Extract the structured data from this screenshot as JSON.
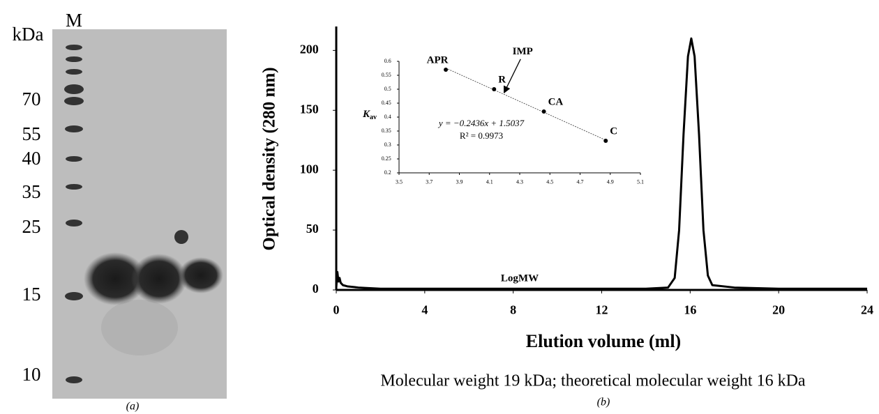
{
  "gel": {
    "lane_label": "M",
    "unit": "kDa",
    "markers": [
      "70",
      "55",
      "40",
      "35",
      "25",
      "15",
      "10"
    ],
    "caption": "(a)"
  },
  "chart_data": [
    {
      "type": "line",
      "xlabel": "Elution volume (ml)",
      "ylabel": "Optical density (280 nm)",
      "caption": "Molecular weight 19 kDa; theoretical molecular weight 16 kDa",
      "panel": "(b)",
      "x": [
        0,
        0.05,
        0.1,
        0.15,
        0.2,
        0.3,
        0.5,
        1,
        2,
        4,
        8,
        12,
        14,
        15,
        15.3,
        15.5,
        15.7,
        15.9,
        16.05,
        16.2,
        16.4,
        16.6,
        16.8,
        17,
        18,
        20,
        22,
        24
      ],
      "values": [
        2,
        15,
        7,
        10,
        6,
        4,
        3,
        2,
        1,
        1,
        1,
        1,
        1,
        2,
        10,
        50,
        130,
        195,
        210,
        195,
        130,
        50,
        12,
        4,
        2,
        1,
        1,
        1
      ],
      "color": "#000000",
      "xlim": [
        0,
        24
      ],
      "xticks": [
        0,
        4,
        8,
        12,
        16,
        20,
        24
      ],
      "ylim": [
        0,
        220
      ],
      "yticks": [
        0,
        50,
        100,
        150,
        200
      ]
    },
    {
      "type": "scatter",
      "xlabel": "LogMW",
      "ylabel": "K",
      "ylabel_subscript": "av",
      "x": [
        3.81,
        4.13,
        4.46,
        4.87
      ],
      "values": [
        0.57,
        0.5,
        0.42,
        0.315
      ],
      "labels": [
        "APR",
        "R",
        "CA",
        "C"
      ],
      "color": "#000000",
      "trendline": {
        "slope": -0.2436,
        "intercept": 1.5037
      },
      "equation": "y = −0.2436x + 1.5037",
      "r_squared": "R² = 0.9973",
      "annotations": [
        {
          "text": "IMP",
          "x": 4.19,
          "y": 0.483
        }
      ],
      "xlim": [
        3.5,
        5.1
      ],
      "xticks": [
        3.5,
        3.7,
        3.9,
        4.1,
        4.3,
        4.5,
        4.7,
        4.9,
        5.1
      ],
      "ylim": [
        0.2,
        0.6
      ],
      "yticks": [
        0.2,
        0.25,
        0.3,
        0.35,
        0.4,
        0.45,
        0.5,
        0.55,
        0.6
      ]
    }
  ]
}
